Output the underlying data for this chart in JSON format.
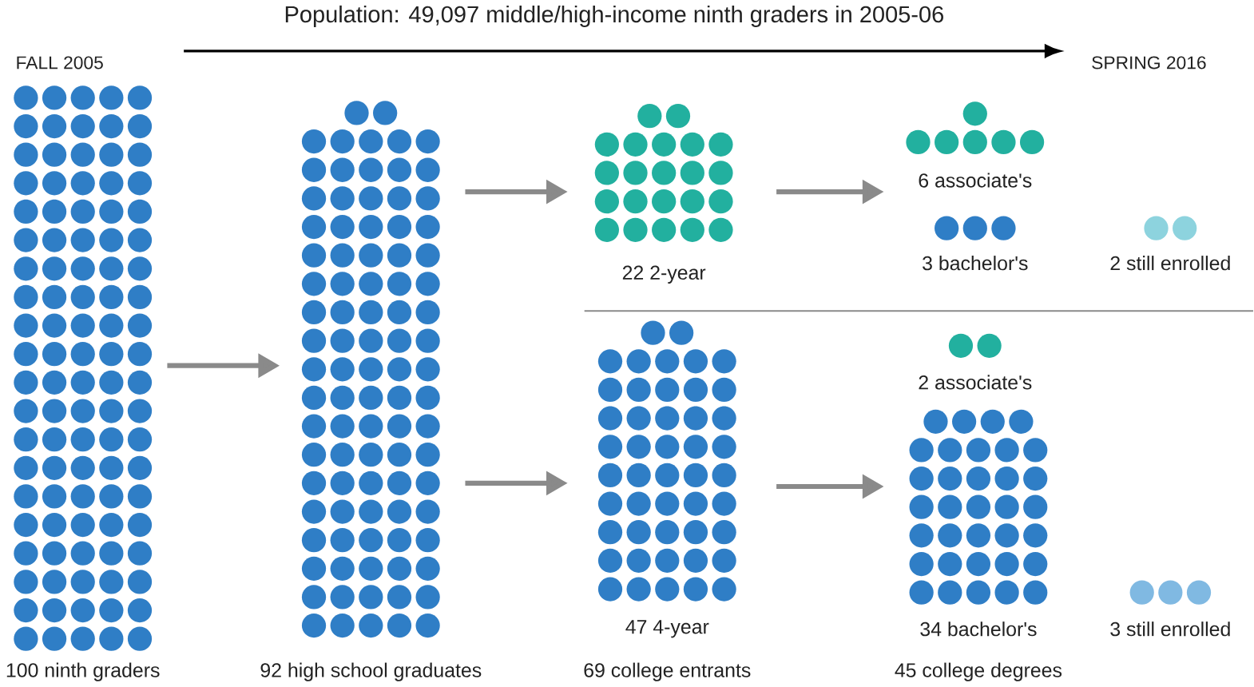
{
  "chart_data": {
    "type": "other",
    "title": "Population: 49,097 middle/high-income ninth graders in 2005-06",
    "categories": [
      "ninth graders",
      "high school graduates",
      "2-year",
      "associate's",
      "bachelor's",
      "still enrolled",
      "4-year",
      "associate's",
      "bachelor's",
      "still enrolled"
    ],
    "data_labels": true,
    "values": [
      100,
      92,
      22,
      6,
      3,
      2,
      47,
      2,
      34,
      3
    ],
    "colors": [
      "#2f7ec6",
      "#2f7ec6",
      "#22b09f",
      "#22b09f",
      "#2f7ec6",
      "#8dd3de",
      "#2f7ec6",
      "#22b09f",
      "#2f7ec6",
      "#80b9e2"
    ],
    "annotations": [
      "FALL 2005",
      "SPRING 2016",
      "69 college entrants",
      "45 college degrees"
    ]
  }
}
